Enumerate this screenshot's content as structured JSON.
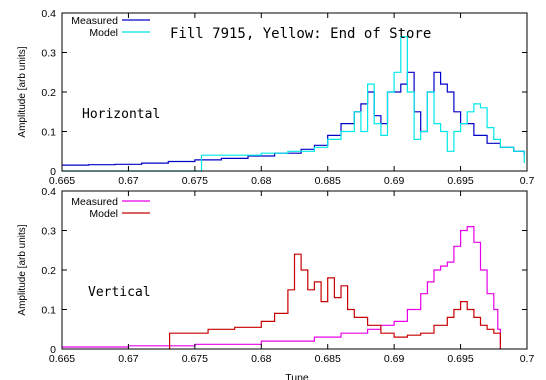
{
  "chart_data": [
    {
      "type": "line",
      "title": "Fill 7915, Yellow: End of Store",
      "annotation": "Horizontal",
      "xlabel": "",
      "ylabel": "Amplitude [arb units]",
      "xlim": [
        0.665,
        0.7
      ],
      "ylim": [
        0,
        0.4
      ],
      "xticks": [
        "0.665",
        "0.67",
        "0.675",
        "0.68",
        "0.685",
        "0.69",
        "0.695",
        "0.7"
      ],
      "yticks": [
        "0",
        "0.1",
        "0.2",
        "0.3",
        "0.4"
      ],
      "legend": "top-left",
      "series": [
        {
          "name": "Measured",
          "color": "#0000c8",
          "x": [
            0.665,
            0.667,
            0.669,
            0.671,
            0.673,
            0.675,
            0.677,
            0.679,
            0.681,
            0.683,
            0.684,
            0.685,
            0.686,
            0.687,
            0.6875,
            0.688,
            0.6885,
            0.689,
            0.6895,
            0.6905,
            0.691,
            0.6915,
            0.692,
            0.6925,
            0.693,
            0.6935,
            0.694,
            0.6945,
            0.695,
            0.696,
            0.697,
            0.698,
            0.699,
            0.6998
          ],
          "y": [
            0.015,
            0.016,
            0.017,
            0.02,
            0.024,
            0.028,
            0.032,
            0.038,
            0.045,
            0.055,
            0.065,
            0.09,
            0.12,
            0.15,
            0.17,
            0.2,
            0.14,
            0.12,
            0.2,
            0.22,
            0.25,
            0.15,
            0.1,
            0.2,
            0.25,
            0.22,
            0.2,
            0.15,
            0.12,
            0.09,
            0.07,
            0.06,
            0.05,
            0.04
          ]
        },
        {
          "name": "Model",
          "color": "#00e8e8",
          "x": [
            0.665,
            0.675,
            0.6755,
            0.678,
            0.68,
            0.682,
            0.684,
            0.685,
            0.686,
            0.687,
            0.6875,
            0.688,
            0.6885,
            0.689,
            0.6895,
            0.69,
            0.6905,
            0.691,
            0.6915,
            0.692,
            0.6925,
            0.693,
            0.6935,
            0.694,
            0.6945,
            0.695,
            0.6955,
            0.696,
            0.6965,
            0.697,
            0.6975,
            0.698,
            0.699,
            0.6998
          ],
          "y": [
            0.0,
            0.0,
            0.04,
            0.04,
            0.045,
            0.05,
            0.06,
            0.08,
            0.1,
            0.15,
            0.1,
            0.22,
            0.12,
            0.09,
            0.2,
            0.25,
            0.34,
            0.2,
            0.08,
            0.1,
            0.2,
            0.12,
            0.1,
            0.05,
            0.1,
            0.12,
            0.15,
            0.17,
            0.16,
            0.11,
            0.08,
            0.06,
            0.05,
            0.02
          ]
        }
      ]
    },
    {
      "type": "line",
      "title": "",
      "annotation": "Vertical",
      "xlabel": "Tune",
      "ylabel": "Amplitude [arb units]",
      "xlim": [
        0.665,
        0.7
      ],
      "ylim": [
        0,
        0.4
      ],
      "xticks": [
        "0.665",
        "0.67",
        "0.675",
        "0.68",
        "0.685",
        "0.69",
        "0.695",
        "0.7"
      ],
      "yticks": [
        "0",
        "0.1",
        "0.2",
        "0.3",
        "0.4"
      ],
      "legend": "top-left",
      "series": [
        {
          "name": "Measured",
          "color": "#e800e8",
          "x": [
            0.665,
            0.67,
            0.675,
            0.68,
            0.684,
            0.686,
            0.688,
            0.689,
            0.69,
            0.691,
            0.692,
            0.6925,
            0.693,
            0.6935,
            0.694,
            0.6945,
            0.695,
            0.6955,
            0.696,
            0.6965,
            0.697,
            0.6975,
            0.6978,
            0.698
          ],
          "y": [
            0.005,
            0.008,
            0.012,
            0.02,
            0.03,
            0.04,
            0.05,
            0.06,
            0.07,
            0.1,
            0.14,
            0.17,
            0.2,
            0.21,
            0.22,
            0.26,
            0.3,
            0.31,
            0.27,
            0.2,
            0.14,
            0.1,
            0.05,
            0.0
          ]
        },
        {
          "name": "Model",
          "color": "#c80000",
          "x": [
            0.673,
            0.6731,
            0.676,
            0.678,
            0.68,
            0.681,
            0.682,
            0.6825,
            0.683,
            0.6835,
            0.684,
            0.6845,
            0.685,
            0.6855,
            0.686,
            0.6865,
            0.687,
            0.688,
            0.689,
            0.69,
            0.691,
            0.692,
            0.693,
            0.694,
            0.6945,
            0.695,
            0.6955,
            0.696,
            0.6965,
            0.697,
            0.6975,
            0.6978,
            0.698
          ],
          "y": [
            0.0,
            0.04,
            0.05,
            0.055,
            0.07,
            0.09,
            0.15,
            0.24,
            0.2,
            0.15,
            0.17,
            0.12,
            0.18,
            0.13,
            0.16,
            0.1,
            0.08,
            0.06,
            0.04,
            0.03,
            0.035,
            0.04,
            0.06,
            0.08,
            0.1,
            0.12,
            0.1,
            0.08,
            0.06,
            0.05,
            0.04,
            0.04,
            0.0
          ]
        }
      ]
    }
  ]
}
